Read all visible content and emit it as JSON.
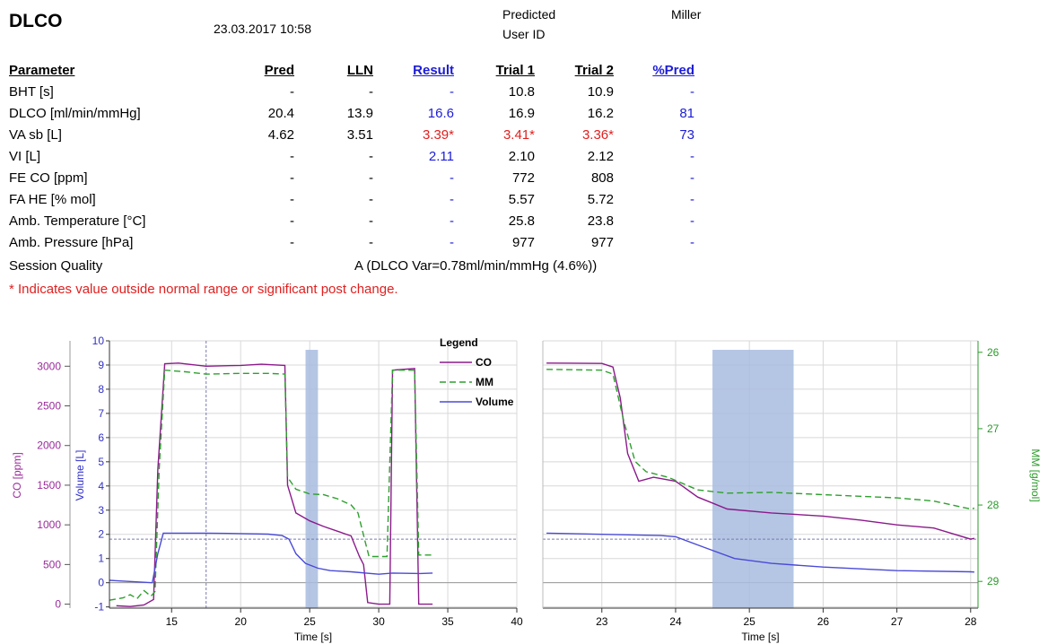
{
  "header": {
    "title": "DLCO",
    "datetime": "23.03.2017 10:58",
    "predicted_label": "Predicted",
    "predicted_value": "Miller",
    "user_id_label": "User ID"
  },
  "table": {
    "columns": [
      "Parameter",
      "Pred",
      "LLN",
      "Result",
      "Trial 1",
      "Trial 2",
      "%Pred"
    ],
    "rows": [
      {
        "param": "BHT [s]",
        "pred": "-",
        "lln": "-",
        "result": "-",
        "trial1": "10.8",
        "trial2": "10.9",
        "pctpred": "-",
        "colors": {
          "result": "blue",
          "trial1": "black",
          "trial2": "black",
          "pctpred": "blue"
        }
      },
      {
        "param": "DLCO [ml/min/mmHg]",
        "pred": "20.4",
        "lln": "13.9",
        "result": "16.6",
        "trial1": "16.9",
        "trial2": "16.2",
        "pctpred": "81",
        "colors": {
          "result": "blue",
          "trial1": "black",
          "trial2": "black",
          "pctpred": "blue"
        }
      },
      {
        "param": "VA sb [L]",
        "pred": "4.62",
        "lln": "3.51",
        "result": "3.39*",
        "trial1": "3.41*",
        "trial2": "3.36*",
        "pctpred": "73",
        "colors": {
          "result": "red",
          "trial1": "red",
          "trial2": "red",
          "pctpred": "blue"
        }
      },
      {
        "param": "VI [L]",
        "pred": "-",
        "lln": "-",
        "result": "2.11",
        "trial1": "2.10",
        "trial2": "2.12",
        "pctpred": "-",
        "colors": {
          "result": "blue",
          "trial1": "black",
          "trial2": "black",
          "pctpred": "blue"
        }
      },
      {
        "param": "FE CO [ppm]",
        "pred": "-",
        "lln": "-",
        "result": "-",
        "trial1": "772",
        "trial2": "808",
        "pctpred": "-",
        "colors": {
          "result": "blue",
          "trial1": "black",
          "trial2": "black",
          "pctpred": "blue"
        }
      },
      {
        "param": "FA HE [% mol]",
        "pred": "-",
        "lln": "-",
        "result": "-",
        "trial1": "5.57",
        "trial2": "5.72",
        "pctpred": "-",
        "colors": {
          "result": "blue",
          "trial1": "black",
          "trial2": "black",
          "pctpred": "blue"
        }
      },
      {
        "param": "Amb. Temperature [°C]",
        "pred": "-",
        "lln": "-",
        "result": "-",
        "trial1": "25.8",
        "trial2": "23.8",
        "pctpred": "-",
        "colors": {
          "result": "blue",
          "trial1": "black",
          "trial2": "black",
          "pctpred": "blue"
        }
      },
      {
        "param": "Amb. Pressure [hPa]",
        "pred": "-",
        "lln": "-",
        "result": "-",
        "trial1": "977",
        "trial2": "977",
        "pctpred": "-",
        "colors": {
          "result": "blue",
          "trial1": "black",
          "trial2": "black",
          "pctpred": "blue"
        }
      }
    ],
    "session_quality_label": "Session Quality",
    "session_quality_value": "A (DLCO Var=0.78ml/min/mmHg (4.6%))",
    "note": "* Indicates value outside normal range or significant post change."
  },
  "colors": {
    "co": "#8b1a8b",
    "mm": "#2ea02e",
    "volume": "#4a4ad8",
    "band": "#a8bcdf",
    "grid": "#d8d8d8",
    "axis_co": "#9b2a9b",
    "axis_vol": "#3030c8",
    "axis_mm": "#2a9a2a"
  },
  "chart_data": [
    {
      "type": "line",
      "xlabel": "Time  [s]",
      "x_ticks": [
        15,
        20,
        25,
        30,
        35,
        40
      ],
      "xlim": [
        10.5,
        40
      ],
      "co_axis": {
        "label": "CO [ppm]",
        "ticks": [
          0,
          500,
          1000,
          1500,
          2000,
          2500,
          3000
        ],
        "ylim": [
          -50,
          3320
        ]
      },
      "volume_axis": {
        "label": "Volume [L]",
        "ticks": [
          -1,
          0,
          1,
          2,
          3,
          4,
          5,
          6,
          7,
          8,
          9,
          10
        ],
        "ylim": [
          -1.05,
          10
        ]
      },
      "legend": {
        "title": "Legend",
        "placement": "top-right",
        "entries": [
          "CO",
          "MM",
          "Volume"
        ]
      },
      "shaded_band": {
        "x0": 24.7,
        "x1": 25.6
      },
      "vertical_ref": 17.5,
      "horizontal_ref_volume": 1.8,
      "series": [
        {
          "name": "CO",
          "axis": "co",
          "points": [
            [
              11,
              -20
            ],
            [
              12,
              -30
            ],
            [
              13,
              -10
            ],
            [
              13.7,
              60
            ],
            [
              14,
              1700
            ],
            [
              14.5,
              3030
            ],
            [
              15.5,
              3040
            ],
            [
              17.5,
              3000
            ],
            [
              20,
              3010
            ],
            [
              21.5,
              3025
            ],
            [
              23.2,
              3010
            ],
            [
              23.4,
              1500
            ],
            [
              24,
              1150
            ],
            [
              25,
              1050
            ],
            [
              26,
              980
            ],
            [
              27,
              920
            ],
            [
              28,
              860
            ],
            [
              28.6,
              600
            ],
            [
              28.9,
              500
            ],
            [
              29.2,
              20
            ],
            [
              30,
              0
            ],
            [
              30.8,
              0
            ],
            [
              31,
              2950
            ],
            [
              32.6,
              2970
            ],
            [
              32.9,
              0
            ],
            [
              33.9,
              0
            ]
          ]
        },
        {
          "name": "MM",
          "axis": "co",
          "points": [
            [
              10.5,
              50
            ],
            [
              11.5,
              80
            ],
            [
              12,
              120
            ],
            [
              12.5,
              70
            ],
            [
              13,
              170
            ],
            [
              13.5,
              100
            ],
            [
              13.8,
              160
            ],
            [
              14.1,
              1700
            ],
            [
              14.5,
              2950
            ],
            [
              16,
              2930
            ],
            [
              17.5,
              2900
            ],
            [
              20,
              2910
            ],
            [
              22,
              2910
            ],
            [
              23.2,
              2900
            ],
            [
              23.4,
              1600
            ],
            [
              24,
              1450
            ],
            [
              25,
              1390
            ],
            [
              26,
              1380
            ],
            [
              27,
              1330
            ],
            [
              28,
              1250
            ],
            [
              28.5,
              1150
            ],
            [
              29,
              800
            ],
            [
              29.3,
              600
            ],
            [
              30.6,
              600
            ],
            [
              31,
              2950
            ],
            [
              32.6,
              2950
            ],
            [
              32.9,
              620
            ],
            [
              33.9,
              620
            ]
          ]
        },
        {
          "name": "Volume",
          "axis": "volume",
          "points": [
            [
              10.5,
              0.1
            ],
            [
              12,
              0.05
            ],
            [
              13.6,
              0.0
            ],
            [
              14,
              1.2
            ],
            [
              14.4,
              2.05
            ],
            [
              17.5,
              2.05
            ],
            [
              20,
              2.03
            ],
            [
              22,
              2.01
            ],
            [
              23,
              1.95
            ],
            [
              23.5,
              1.8
            ],
            [
              24,
              1.2
            ],
            [
              24.7,
              0.8
            ],
            [
              25.6,
              0.6
            ],
            [
              26.5,
              0.5
            ],
            [
              28,
              0.45
            ],
            [
              30,
              0.35
            ],
            [
              31,
              0.4
            ],
            [
              33,
              0.38
            ],
            [
              33.9,
              0.4
            ]
          ]
        }
      ]
    },
    {
      "type": "line",
      "xlabel": "Time  [s]",
      "x_ticks": [
        23,
        24,
        25,
        26,
        27,
        28
      ],
      "xlim": [
        22.2,
        28.1
      ],
      "mm_axis": {
        "label": "MM [g/mol]",
        "ticks": [
          26,
          27,
          28,
          29
        ],
        "ylim": [
          29.35,
          25.85
        ]
      },
      "shaded_band": {
        "x0": 24.5,
        "x1": 25.6
      },
      "horizontal_ref_volume": 1.8,
      "series": [
        {
          "name": "CO",
          "axis": "co",
          "points": [
            [
              22.25,
              3040
            ],
            [
              23,
              3035
            ],
            [
              23.15,
              2990
            ],
            [
              23.25,
              2600
            ],
            [
              23.35,
              1900
            ],
            [
              23.5,
              1550
            ],
            [
              23.7,
              1600
            ],
            [
              24,
              1550
            ],
            [
              24.3,
              1350
            ],
            [
              24.7,
              1200
            ],
            [
              25.3,
              1150
            ],
            [
              26,
              1110
            ],
            [
              26.5,
              1060
            ],
            [
              27,
              1000
            ],
            [
              27.5,
              960
            ],
            [
              28,
              820
            ],
            [
              28.05,
              830
            ]
          ]
        },
        {
          "name": "MM",
          "axis": "co",
          "points": [
            [
              22.25,
              2960
            ],
            [
              23,
              2950
            ],
            [
              23.15,
              2900
            ],
            [
              23.3,
              2300
            ],
            [
              23.45,
              1800
            ],
            [
              23.6,
              1670
            ],
            [
              23.9,
              1600
            ],
            [
              24.3,
              1440
            ],
            [
              24.7,
              1400
            ],
            [
              25.3,
              1410
            ],
            [
              26,
              1380
            ],
            [
              26.5,
              1360
            ],
            [
              27,
              1340
            ],
            [
              27.5,
              1300
            ],
            [
              28,
              1200
            ],
            [
              28.05,
              1210
            ]
          ]
        },
        {
          "name": "Volume",
          "axis": "volume",
          "points": [
            [
              22.25,
              2.05
            ],
            [
              23,
              2.0
            ],
            [
              23.8,
              1.95
            ],
            [
              24,
              1.9
            ],
            [
              24.4,
              1.45
            ],
            [
              24.8,
              1.0
            ],
            [
              25.3,
              0.8
            ],
            [
              26,
              0.65
            ],
            [
              27,
              0.5
            ],
            [
              28,
              0.45
            ],
            [
              28.05,
              0.44
            ]
          ]
        }
      ]
    }
  ]
}
